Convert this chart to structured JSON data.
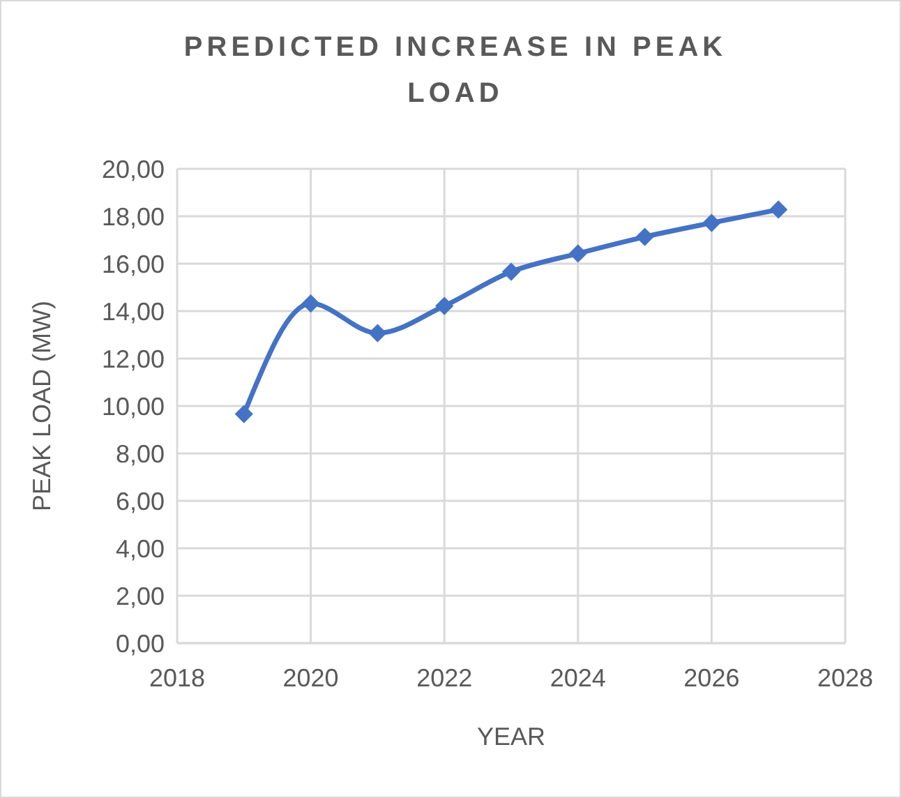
{
  "chart_data": {
    "type": "line",
    "title": "PREDICTED INCREASE IN PEAK LOAD",
    "xlabel": "YEAR",
    "ylabel": "PEAK LOAD (MW)",
    "x": [
      2019,
      2020,
      2021,
      2022,
      2023,
      2024,
      2025,
      2026,
      2027
    ],
    "series": [
      {
        "color": "#4472c4",
        "values": [
          9.66,
          14.32,
          13.07,
          14.22,
          15.66,
          16.43,
          17.13,
          17.72,
          18.28
        ]
      }
    ],
    "xlim": [
      2018,
      2028
    ],
    "xticks": [
      2018,
      2020,
      2022,
      2024,
      2026,
      2028
    ],
    "ylim": [
      0,
      20
    ],
    "yticks": [
      {
        "value": 0,
        "label": "0,00"
      },
      {
        "value": 2,
        "label": "2,00"
      },
      {
        "value": 4,
        "label": "4,00"
      },
      {
        "value": 6,
        "label": "6,00"
      },
      {
        "value": 8,
        "label": "8,00"
      },
      {
        "value": 10,
        "label": "10,00"
      },
      {
        "value": 12,
        "label": "12,00"
      },
      {
        "value": 14,
        "label": "14,00"
      },
      {
        "value": 16,
        "label": "16,00"
      },
      {
        "value": 18,
        "label": "18,00"
      },
      {
        "value": 20,
        "label": "20,00"
      }
    ],
    "grid": true,
    "marker": "diamond",
    "line_style": "solid"
  }
}
